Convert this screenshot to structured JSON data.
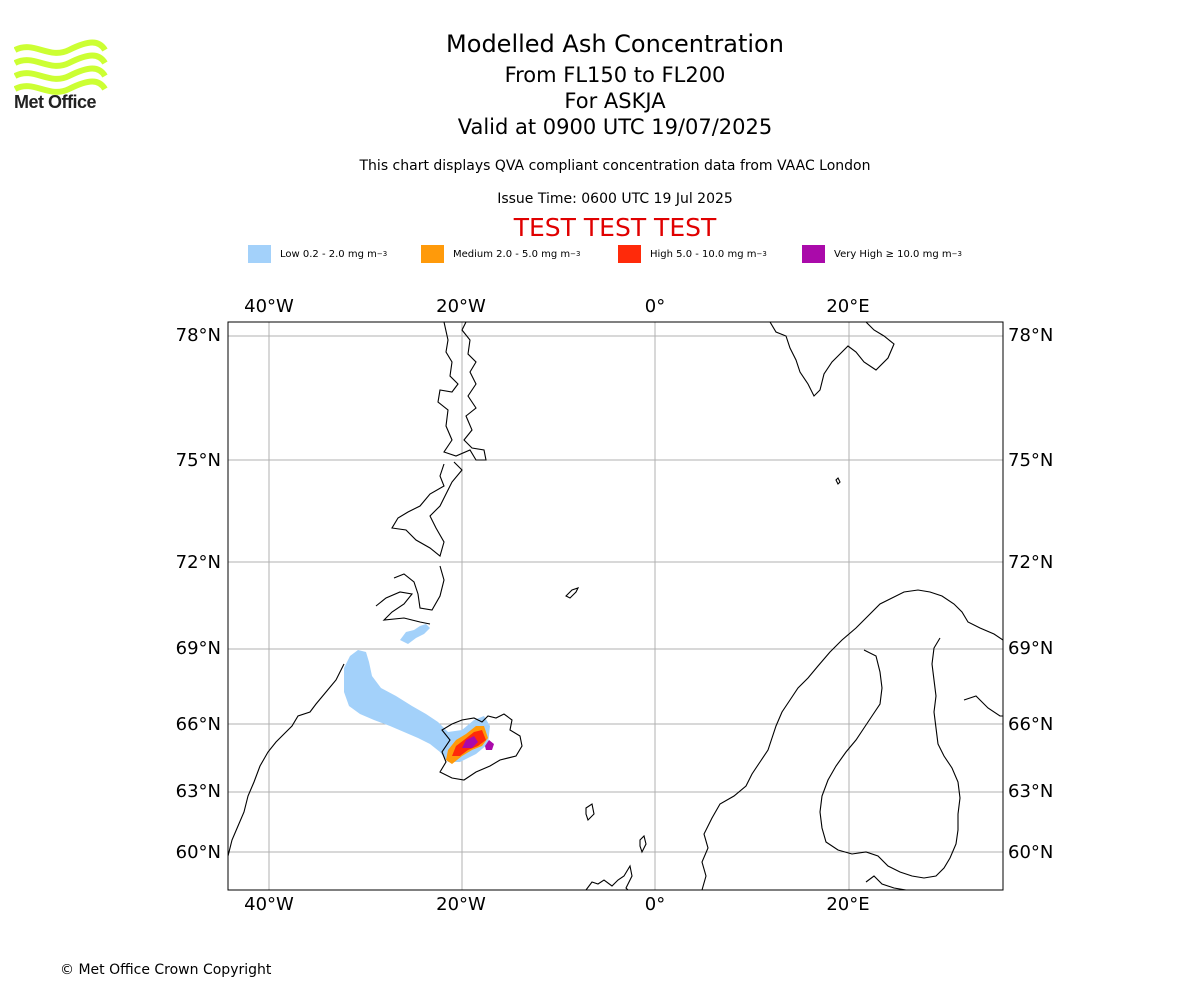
{
  "logo": {
    "text": "Met Office",
    "color": "#ccff33"
  },
  "header": {
    "title": "Modelled Ash Concentration",
    "level_range": "From FL150 to FL200",
    "volcano": "For ASKJA",
    "valid": "Valid at 0900 UTC 19/07/2025",
    "description": "This chart displays QVA compliant concentration data from VAAC London",
    "issue_time": "Issue Time: 0600 UTC 19 Jul 2025",
    "test_banner": "TEST TEST TEST"
  },
  "legend": [
    {
      "label": "Low 0.2 - 2.0 mg m",
      "color": "#a3d1fa"
    },
    {
      "label": "Medium 2.0 - 5.0 mg m",
      "color": "#ff9a0a"
    },
    {
      "label": "High 5.0 - 10.0 mg m",
      "color": "#ff2a0a"
    },
    {
      "label": "Very High ≥ 10.0 mg m",
      "color": "#aa0aaa"
    }
  ],
  "legend_unit_exponent": "−3",
  "map": {
    "lon_labels": [
      "40°W",
      "20°W",
      "0°",
      "20°E"
    ],
    "lat_labels": [
      "78°N",
      "75°N",
      "72°N",
      "69°N",
      "66°N",
      "63°N",
      "60°N"
    ],
    "grid": true,
    "volcano_marker": "ASKJA"
  },
  "footer": {
    "copyright": "© Met Office Crown Copyright"
  }
}
